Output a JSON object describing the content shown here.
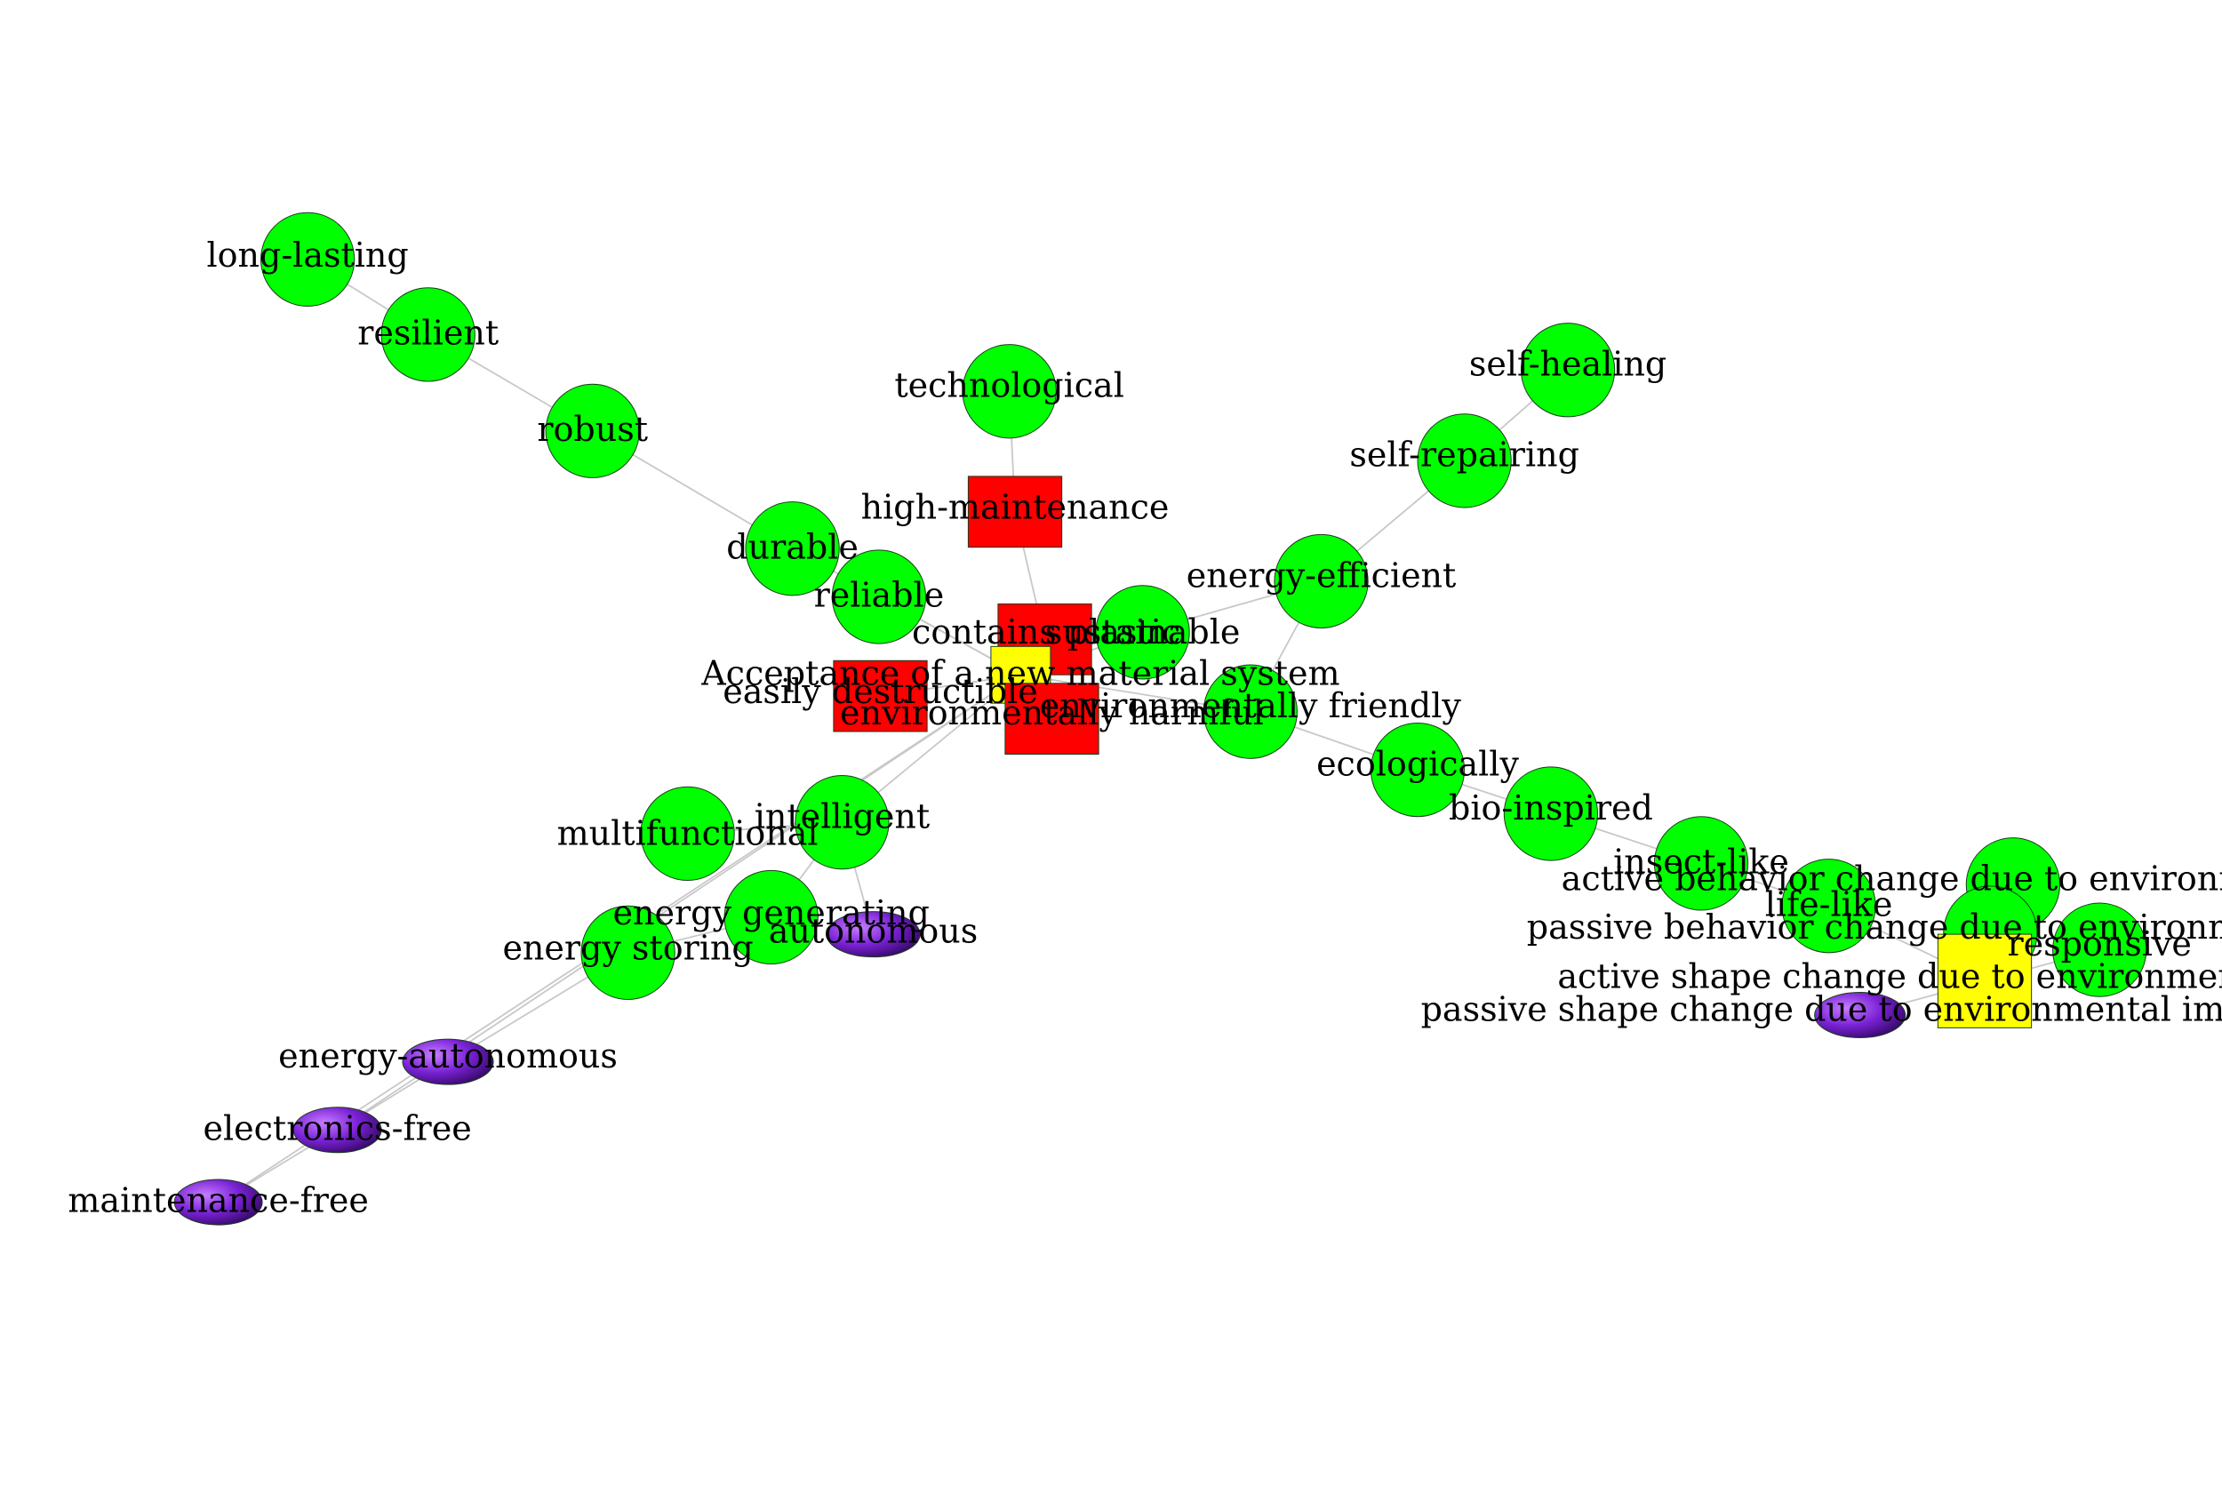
{
  "nodes": [
    {
      "id": "long-lasting",
      "label": "long-lasting",
      "kind": "circle",
      "color": "#00ff00"
    },
    {
      "id": "resilient",
      "label": "resilient",
      "kind": "circle",
      "color": "#00ff00"
    },
    {
      "id": "robust",
      "label": "robust",
      "kind": "circle",
      "color": "#00ff00"
    },
    {
      "id": "durable",
      "label": "durable",
      "kind": "circle",
      "color": "#00ff00"
    },
    {
      "id": "reliable",
      "label": "reliable",
      "kind": "circle",
      "color": "#00ff00"
    },
    {
      "id": "technological",
      "label": "technological",
      "kind": "circle",
      "color": "#00ff00"
    },
    {
      "id": "high-maintenance",
      "label": "high-maintenance",
      "kind": "square",
      "color": "#ff0000"
    },
    {
      "id": "contains-plastic",
      "label": "contains plastic",
      "kind": "square",
      "color": "#ff0000"
    },
    {
      "id": "sustainable",
      "label": "sustainable",
      "kind": "circle",
      "color": "#00ff00"
    },
    {
      "id": "acceptance",
      "label": "Acceptance of a new material system",
      "kind": "square",
      "color": "#ffff00"
    },
    {
      "id": "easily-destructible",
      "label": "easily destructible",
      "kind": "square",
      "color": "#ff0000"
    },
    {
      "id": "environmentally-harmful",
      "label": "environmentally harmful",
      "kind": "square",
      "color": "#ff0000"
    },
    {
      "id": "environmentally-friendly",
      "label": "environmentally friendly",
      "kind": "circle",
      "color": "#00ff00"
    },
    {
      "id": "energy-efficient",
      "label": "energy-efficient",
      "kind": "circle",
      "color": "#00ff00"
    },
    {
      "id": "self-repairing",
      "label": "self-repairing",
      "kind": "circle",
      "color": "#00ff00"
    },
    {
      "id": "self-healing",
      "label": "self-healing",
      "kind": "circle",
      "color": "#00ff00"
    },
    {
      "id": "ecologically",
      "label": "ecologically",
      "kind": "circle",
      "color": "#00ff00"
    },
    {
      "id": "bio-inspired",
      "label": "bio-inspired",
      "kind": "circle",
      "color": "#00ff00"
    },
    {
      "id": "insect-like",
      "label": "insect-like",
      "kind": "circle",
      "color": "#00ff00"
    },
    {
      "id": "life-like",
      "label": "life-like",
      "kind": "circle",
      "color": "#00ff00"
    },
    {
      "id": "active-behavior",
      "label": "active behavior change due to environmental impact",
      "kind": "circle",
      "color": "#00ff00"
    },
    {
      "id": "passive-behavior",
      "label": "passive behavior change due to environmental impact",
      "kind": "circle",
      "color": "#00ff00"
    },
    {
      "id": "responsive",
      "label": "responsive",
      "kind": "circle",
      "color": "#00ff00"
    },
    {
      "id": "active-shape",
      "label": "active shape change due to environmental impact",
      "kind": "square",
      "color": "#ffff00"
    },
    {
      "id": "passive-shape",
      "label": "passive shape change due to environmental impact",
      "kind": "ellipse",
      "color": "#6a1fb8"
    },
    {
      "id": "intelligent",
      "label": "intelligent",
      "kind": "circle",
      "color": "#00ff00"
    },
    {
      "id": "multifunctional",
      "label": "multifunctional",
      "kind": "circle",
      "color": "#00ff00"
    },
    {
      "id": "energy-generating",
      "label": "energy generating",
      "kind": "circle",
      "color": "#00ff00"
    },
    {
      "id": "autonomous",
      "label": "autonomous",
      "kind": "ellipse",
      "color": "#5a1a9e"
    },
    {
      "id": "energy-storing",
      "label": "energy storing",
      "kind": "circle",
      "color": "#00ff00"
    },
    {
      "id": "energy-autonomous",
      "label": "energy-autonomous",
      "kind": "ellipse",
      "color": "#7a2ad0"
    },
    {
      "id": "electronics-free",
      "label": "electronics-free",
      "kind": "ellipse",
      "color": "#8a2be2"
    },
    {
      "id": "maintenance-free",
      "label": "maintenance-free",
      "kind": "ellipse",
      "color": "#8a2be2"
    }
  ],
  "edges": [
    [
      "long-lasting",
      "resilient"
    ],
    [
      "resilient",
      "robust"
    ],
    [
      "robust",
      "durable"
    ],
    [
      "durable",
      "acceptance"
    ],
    [
      "reliable",
      "acceptance"
    ],
    [
      "technological",
      "high-maintenance"
    ],
    [
      "high-maintenance",
      "contains-plastic"
    ],
    [
      "contains-plastic",
      "acceptance"
    ],
    [
      "sustainable",
      "acceptance"
    ],
    [
      "easily-destructible",
      "acceptance"
    ],
    [
      "environmentally-harmful",
      "acceptance"
    ],
    [
      "environmentally-friendly",
      "acceptance"
    ],
    [
      "energy-efficient",
      "sustainable"
    ],
    [
      "energy-efficient",
      "environmentally-friendly"
    ],
    [
      "self-repairing",
      "energy-efficient"
    ],
    [
      "self-healing",
      "self-repairing"
    ],
    [
      "ecologically",
      "environmentally-friendly"
    ],
    [
      "bio-inspired",
      "ecologically"
    ],
    [
      "insect-like",
      "bio-inspired"
    ],
    [
      "life-like",
      "insect-like"
    ],
    [
      "life-like",
      "active-shape"
    ],
    [
      "active-behavior",
      "active-shape"
    ],
    [
      "passive-behavior",
      "active-shape"
    ],
    [
      "responsive",
      "active-shape"
    ],
    [
      "passive-shape",
      "active-shape"
    ],
    [
      "intelligent",
      "acceptance"
    ],
    [
      "multifunctional",
      "intelligent"
    ],
    [
      "energy-generating",
      "intelligent"
    ],
    [
      "autonomous",
      "intelligent"
    ],
    [
      "energy-storing",
      "energy-generating"
    ],
    [
      "energy-autonomous",
      "energy-storing"
    ],
    [
      "electronics-free",
      "energy-autonomous"
    ],
    [
      "maintenance-free",
      "electronics-free"
    ],
    [
      "electronics-free",
      "acceptance"
    ],
    [
      "maintenance-free",
      "acceptance"
    ]
  ]
}
